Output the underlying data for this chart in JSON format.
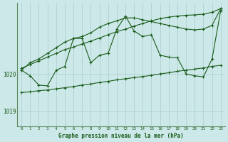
{
  "title": "Graphe pression niveau de la mer (hPa)",
  "bg_color": "#cce8e8",
  "line_color": "#1a5c1a",
  "grid_color": "#aacccc",
  "xlim": [
    -0.5,
    23.5
  ],
  "ylim": [
    1018.6,
    1021.9
  ],
  "yticks": [
    1019,
    1020
  ],
  "xticks": [
    0,
    1,
    2,
    3,
    4,
    5,
    6,
    7,
    8,
    9,
    10,
    11,
    12,
    13,
    14,
    15,
    16,
    17,
    18,
    19,
    20,
    21,
    22,
    23
  ],
  "upper_bound": [
    1020.15,
    1020.25,
    1020.35,
    1020.45,
    1020.55,
    1020.65,
    1020.72,
    1020.8,
    1020.88,
    1020.96,
    1021.05,
    1021.13,
    1021.2,
    1021.28,
    1021.35,
    1021.42,
    1021.48,
    1021.52,
    1021.55,
    1021.57,
    1021.58,
    1021.6,
    1021.65,
    1021.75
  ],
  "lower_bound": [
    1019.5,
    1019.52,
    1019.55,
    1019.57,
    1019.6,
    1019.63,
    1019.66,
    1019.7,
    1019.73,
    1019.77,
    1019.8,
    1019.84,
    1019.87,
    1019.9,
    1019.93,
    1019.96,
    1020.0,
    1020.03,
    1020.07,
    1020.1,
    1020.13,
    1020.16,
    1020.2,
    1020.23
  ],
  "zigzag_line": [
    1020.1,
    1019.95,
    1019.7,
    1019.68,
    1020.1,
    1020.2,
    1020.95,
    1020.95,
    1020.3,
    1020.5,
    1020.55,
    1021.2,
    1021.55,
    1021.15,
    1021.0,
    1021.05,
    1020.5,
    1020.45,
    1020.43,
    1020.0,
    1019.95,
    1019.92,
    1020.4,
    1021.7
  ],
  "smooth_line": [
    1020.1,
    1020.3,
    1020.4,
    1020.55,
    1020.7,
    1020.85,
    1020.95,
    1021.0,
    1021.1,
    1021.25,
    1021.35,
    1021.42,
    1021.5,
    1021.5,
    1021.45,
    1021.4,
    1021.35,
    1021.3,
    1021.25,
    1021.2,
    1021.18,
    1021.2,
    1021.3,
    1021.75
  ]
}
